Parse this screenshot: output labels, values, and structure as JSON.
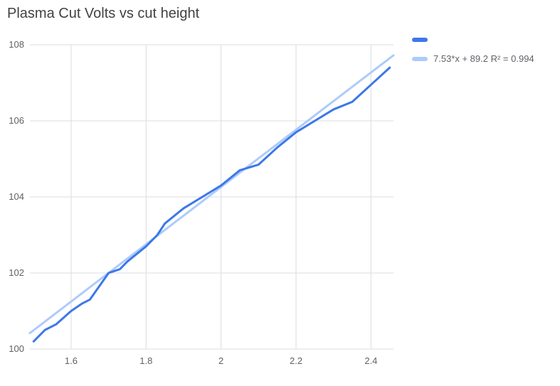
{
  "chart_data": {
    "type": "line",
    "title": "Plasma Cut Volts vs cut height",
    "xlabel": "",
    "ylabel": "",
    "xlim": [
      1.49,
      2.46
    ],
    "ylim": [
      100,
      108
    ],
    "grid": true,
    "legend_position": "right-top",
    "x_ticks": [
      "1.6",
      "1.8",
      "2",
      "2.2",
      "2.4"
    ],
    "x_tick_values": [
      1.6,
      1.8,
      2.0,
      2.2,
      2.4
    ],
    "y_ticks": [
      "100",
      "102",
      "104",
      "106",
      "108"
    ],
    "y_tick_values": [
      100,
      102,
      104,
      106,
      108
    ],
    "gridline_color": "#dadce0",
    "series": [
      {
        "name": "",
        "color": "#3c78e7",
        "line_width": 3,
        "x": [
          1.5,
          1.53,
          1.56,
          1.6,
          1.63,
          1.65,
          1.7,
          1.73,
          1.75,
          1.8,
          1.83,
          1.85,
          1.9,
          1.95,
          2.0,
          2.05,
          2.1,
          2.15,
          2.2,
          2.25,
          2.3,
          2.35,
          2.4,
          2.45
        ],
        "y": [
          100.2,
          100.5,
          100.65,
          101.0,
          101.2,
          101.3,
          102.0,
          102.1,
          102.3,
          102.7,
          103.0,
          103.3,
          103.7,
          104.0,
          104.3,
          104.7,
          104.85,
          105.3,
          105.7,
          106.0,
          106.3,
          106.5,
          106.95,
          107.4
        ]
      },
      {
        "name": "trendline",
        "label": "7.53*x + 89.2 R² = 0.994",
        "color": "#aecbfa",
        "line_width": 3,
        "slope": 7.53,
        "intercept": 89.2,
        "r2": 0.994
      }
    ]
  }
}
